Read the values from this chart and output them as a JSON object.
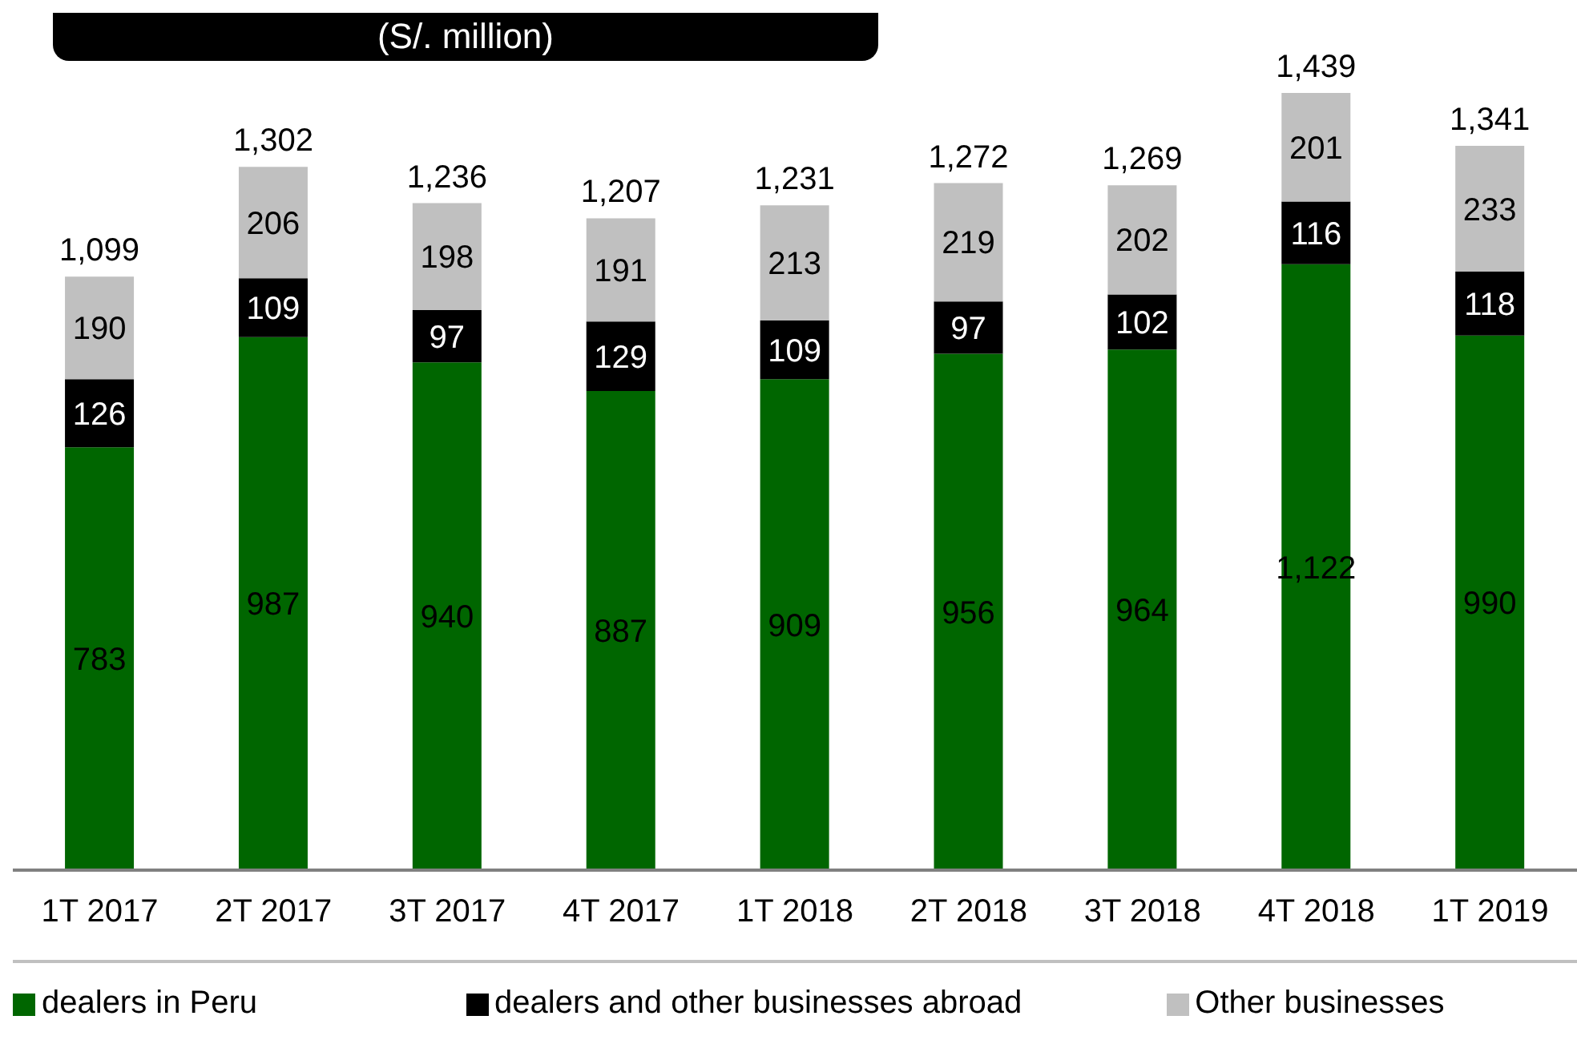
{
  "chart_data": {
    "type": "bar",
    "title": "(S/. million)",
    "stacked": true,
    "legend": "bottom",
    "categories": [
      "1T 2017",
      "2T 2017",
      "3T 2017",
      "4T 2017",
      "1T 2018",
      "2T 2018",
      "3T 2018",
      "4T 2018",
      "1T 2019"
    ],
    "series": [
      {
        "name": "dealers in Peru",
        "color": "#006600",
        "values": [
          783,
          987,
          940,
          887,
          909,
          956,
          964,
          1122,
          990
        ],
        "value_labels": [
          "783",
          "987",
          "940",
          "887",
          "909",
          "956",
          "964",
          "1,122",
          "990"
        ]
      },
      {
        "name": "dealers and other businesses abroad",
        "color": "#000000",
        "values": [
          126,
          109,
          97,
          129,
          109,
          97,
          102,
          116,
          118
        ],
        "value_labels": [
          "126",
          "109",
          "97",
          "129",
          "109",
          "97",
          "102",
          "116",
          "118"
        ]
      },
      {
        "name": "Other businesses",
        "color": "#c0c0c0",
        "values": [
          190,
          206,
          198,
          191,
          213,
          219,
          202,
          201,
          233
        ],
        "value_labels": [
          "190",
          "206",
          "198",
          "191",
          "213",
          "219",
          "202",
          "201",
          "233"
        ]
      }
    ],
    "totals": [
      "1,099",
      "1,302",
      "1,236",
      "1,207",
      "1,231",
      "1,272",
      "1,269",
      "1,439",
      "1,341"
    ]
  }
}
